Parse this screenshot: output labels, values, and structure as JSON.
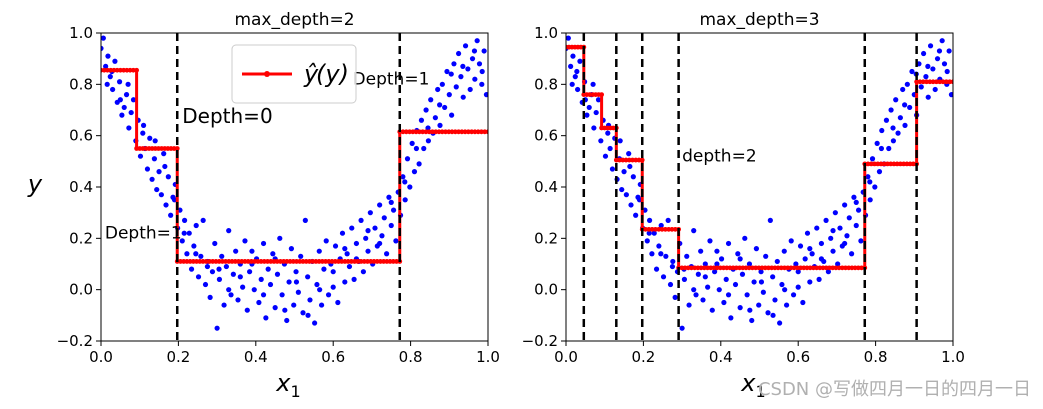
{
  "watermark": "CSDN @写做四月一日的四月一日",
  "chart_data": [
    {
      "type": "scatter+step",
      "title": "max_depth=2",
      "xlabel": "x1",
      "ylabel": "y",
      "xlim": [
        0,
        1
      ],
      "ylim": [
        -0.2,
        1.0
      ],
      "xticks": [
        "0.0",
        "0.2",
        "0.4",
        "0.6",
        "0.8",
        "1.0"
      ],
      "yticks": [
        "−0.2",
        "0.0",
        "0.2",
        "0.4",
        "0.6",
        "0.8",
        "1.0"
      ],
      "legend": {
        "label": "ŷ",
        "suffix": "(y)",
        "position": "upper-center"
      },
      "prediction_steps": [
        {
          "x0": 0.0,
          "x1": 0.092,
          "y": 0.855
        },
        {
          "x0": 0.092,
          "x1": 0.197,
          "y": 0.55
        },
        {
          "x0": 0.197,
          "x1": 0.772,
          "y": 0.11
        },
        {
          "x0": 0.772,
          "x1": 1.0,
          "y": 0.615
        }
      ],
      "split_lines": [
        {
          "x": 0.197
        },
        {
          "x": 0.772
        }
      ],
      "annotations": [
        {
          "text": "Depth=0",
          "x": 0.21,
          "y": 0.65,
          "size": "large"
        },
        {
          "text": "Depth=1",
          "x": 0.01,
          "y": 0.2,
          "size": "medium"
        },
        {
          "text": "Depth=1",
          "x": 0.65,
          "y": 0.8,
          "size": "medium"
        }
      ]
    },
    {
      "type": "scatter+step",
      "title": "max_depth=3",
      "xlabel": "x1",
      "ylabel": "",
      "xlim": [
        0,
        1
      ],
      "ylim": [
        -0.2,
        1.0
      ],
      "xticks": [
        "0.0",
        "0.2",
        "0.4",
        "0.6",
        "0.8",
        "1.0"
      ],
      "yticks": [
        "−0.2",
        "0.0",
        "0.2",
        "0.4",
        "0.6",
        "0.8",
        "1.0"
      ],
      "prediction_steps": [
        {
          "x0": 0.0,
          "x1": 0.046,
          "y": 0.945
        },
        {
          "x0": 0.046,
          "x1": 0.092,
          "y": 0.76
        },
        {
          "x0": 0.092,
          "x1": 0.13,
          "y": 0.63
        },
        {
          "x0": 0.13,
          "x1": 0.197,
          "y": 0.505
        },
        {
          "x0": 0.197,
          "x1": 0.291,
          "y": 0.235
        },
        {
          "x0": 0.291,
          "x1": 0.772,
          "y": 0.085
        },
        {
          "x0": 0.772,
          "x1": 0.906,
          "y": 0.49
        },
        {
          "x0": 0.906,
          "x1": 1.0,
          "y": 0.81
        }
      ],
      "split_lines": [
        {
          "x": 0.046
        },
        {
          "x": 0.13
        },
        {
          "x": 0.197
        },
        {
          "x": 0.291
        },
        {
          "x": 0.772
        },
        {
          "x": 0.906
        }
      ],
      "annotations": [
        {
          "text": "depth=2",
          "x": 0.3,
          "y": 0.5,
          "size": "medium"
        }
      ]
    }
  ],
  "scatter_points": [
    [
      0.0,
      0.94
    ],
    [
      0.006,
      0.98
    ],
    [
      0.012,
      0.87
    ],
    [
      0.018,
      0.91
    ],
    [
      0.024,
      0.83
    ],
    [
      0.03,
      0.78
    ],
    [
      0.036,
      0.89
    ],
    [
      0.042,
      0.73
    ],
    [
      0.048,
      0.81
    ],
    [
      0.054,
      0.68
    ],
    [
      0.06,
      0.71
    ],
    [
      0.066,
      0.76
    ],
    [
      0.072,
      0.63
    ],
    [
      0.078,
      0.69
    ],
    [
      0.084,
      0.74
    ],
    [
      0.09,
      0.58
    ],
    [
      0.096,
      0.66
    ],
    [
      0.102,
      0.52
    ],
    [
      0.108,
      0.61
    ],
    [
      0.114,
      0.55
    ],
    [
      0.12,
      0.47
    ],
    [
      0.126,
      0.59
    ],
    [
      0.132,
      0.43
    ],
    [
      0.138,
      0.51
    ],
    [
      0.144,
      0.39
    ],
    [
      0.15,
      0.46
    ],
    [
      0.156,
      0.37
    ],
    [
      0.162,
      0.53
    ],
    [
      0.168,
      0.33
    ],
    [
      0.174,
      0.44
    ],
    [
      0.18,
      0.29
    ],
    [
      0.186,
      0.36
    ],
    [
      0.192,
      0.41
    ],
    [
      0.198,
      0.24
    ],
    [
      0.204,
      0.31
    ],
    [
      0.21,
      0.19
    ],
    [
      0.216,
      0.27
    ],
    [
      0.222,
      0.14
    ],
    [
      0.228,
      0.22
    ],
    [
      0.234,
      0.08
    ],
    [
      0.24,
      0.17
    ],
    [
      0.246,
      0.25
    ],
    [
      0.252,
      0.05
    ],
    [
      0.258,
      0.13
    ],
    [
      0.264,
      0.27
    ],
    [
      0.27,
      0.02
    ],
    [
      0.276,
      0.11
    ],
    [
      0.282,
      -0.03
    ],
    [
      0.288,
      0.07
    ],
    [
      0.294,
      0.18
    ],
    [
      0.3,
      -0.15
    ],
    [
      0.306,
      0.04
    ],
    [
      0.312,
      0.13
    ],
    [
      0.318,
      -0.06
    ],
    [
      0.324,
      0.09
    ],
    [
      0.33,
      0.23
    ],
    [
      0.336,
      -0.02
    ],
    [
      0.342,
      0.06
    ],
    [
      0.348,
      0.15
    ],
    [
      0.354,
      -0.04
    ],
    [
      0.36,
      0.1
    ],
    [
      0.366,
      0.01
    ],
    [
      0.372,
      0.19
    ],
    [
      0.378,
      -0.08
    ],
    [
      0.384,
      0.07
    ],
    [
      0.39,
      0.15
    ],
    [
      0.396,
      0.0
    ],
    [
      0.402,
      0.12
    ],
    [
      0.408,
      -0.05
    ],
    [
      0.414,
      0.04
    ],
    [
      0.42,
      0.18
    ],
    [
      0.426,
      -0.11
    ],
    [
      0.432,
      0.08
    ],
    [
      0.438,
      0.02
    ],
    [
      0.444,
      0.14
    ],
    [
      0.45,
      -0.07
    ],
    [
      0.456,
      0.06
    ],
    [
      0.462,
      0.2
    ],
    [
      0.468,
      -0.02
    ],
    [
      0.474,
      0.1
    ],
    [
      0.48,
      -0.12
    ],
    [
      0.486,
      0.03
    ],
    [
      0.492,
      0.16
    ],
    [
      0.498,
      -0.06
    ],
    [
      0.504,
      0.07
    ],
    [
      0.51,
      -0.01
    ],
    [
      0.516,
      0.13
    ],
    [
      0.522,
      -0.09
    ],
    [
      0.528,
      0.27
    ],
    [
      0.534,
      0.05
    ],
    [
      0.54,
      -0.04
    ],
    [
      0.546,
      0.11
    ],
    [
      0.552,
      -0.13
    ],
    [
      0.558,
      0.02
    ],
    [
      0.564,
      0.15
    ],
    [
      0.57,
      -0.06
    ],
    [
      0.576,
      0.08
    ],
    [
      0.582,
      0.19
    ],
    [
      0.588,
      -0.02
    ],
    [
      0.594,
      0.1
    ],
    [
      0.6,
      0.01
    ],
    [
      0.606,
      0.17
    ],
    [
      0.612,
      -0.05
    ],
    [
      0.618,
      0.12
    ],
    [
      0.624,
      0.22
    ],
    [
      0.63,
      0.03
    ],
    [
      0.636,
      0.14
    ],
    [
      0.642,
      0.09
    ],
    [
      0.648,
      0.24
    ],
    [
      0.654,
      0.04
    ],
    [
      0.66,
      0.18
    ],
    [
      0.666,
      0.11
    ],
    [
      0.672,
      0.27
    ],
    [
      0.678,
      0.07
    ],
    [
      0.684,
      0.2
    ],
    [
      0.69,
      0.15
    ],
    [
      0.696,
      0.3
    ],
    [
      0.702,
      0.1
    ],
    [
      0.708,
      0.24
    ],
    [
      0.714,
      0.17
    ],
    [
      0.72,
      0.33
    ],
    [
      0.726,
      0.21
    ],
    [
      0.732,
      0.28
    ],
    [
      0.738,
      0.14
    ],
    [
      0.744,
      0.36
    ],
    [
      0.75,
      0.25
    ],
    [
      0.756,
      0.31
    ],
    [
      0.762,
      0.19
    ],
    [
      0.768,
      0.38
    ],
    [
      0.774,
      0.29
    ],
    [
      0.78,
      0.44
    ],
    [
      0.786,
      0.35
    ],
    [
      0.792,
      0.51
    ],
    [
      0.798,
      0.4
    ],
    [
      0.804,
      0.57
    ],
    [
      0.81,
      0.46
    ],
    [
      0.816,
      0.62
    ],
    [
      0.822,
      0.49
    ],
    [
      0.828,
      0.66
    ],
    [
      0.834,
      0.55
    ],
    [
      0.84,
      0.7
    ],
    [
      0.846,
      0.58
    ],
    [
      0.852,
      0.74
    ],
    [
      0.858,
      0.61
    ],
    [
      0.864,
      0.67
    ],
    [
      0.87,
      0.78
    ],
    [
      0.876,
      0.64
    ],
    [
      0.882,
      0.8
    ],
    [
      0.888,
      0.71
    ],
    [
      0.894,
      0.85
    ],
    [
      0.9,
      0.76
    ],
    [
      0.906,
      0.68
    ],
    [
      0.912,
      0.88
    ],
    [
      0.918,
      0.79
    ],
    [
      0.924,
      0.92
    ],
    [
      0.93,
      0.83
    ],
    [
      0.936,
      0.75
    ],
    [
      0.942,
      0.95
    ],
    [
      0.948,
      0.86
    ],
    [
      0.954,
      0.78
    ],
    [
      0.96,
      0.9
    ],
    [
      0.966,
      0.82
    ],
    [
      0.972,
      0.97
    ],
    [
      0.978,
      0.88
    ],
    [
      0.984,
      0.8
    ],
    [
      0.99,
      0.93
    ],
    [
      0.996,
      0.76
    ],
    [
      0.016,
      0.8
    ],
    [
      0.028,
      0.85
    ],
    [
      0.05,
      0.74
    ],
    [
      0.07,
      0.8
    ],
    [
      0.11,
      0.64
    ],
    [
      0.14,
      0.58
    ],
    [
      0.165,
      0.48
    ],
    [
      0.19,
      0.35
    ],
    [
      0.215,
      0.22
    ],
    [
      0.245,
      0.14
    ],
    [
      0.275,
      0.09
    ],
    [
      0.305,
      0.08
    ],
    [
      0.33,
      0.0
    ],
    [
      0.36,
      0.05
    ],
    [
      0.39,
      0.1
    ],
    [
      0.42,
      -0.02
    ],
    [
      0.45,
      0.12
    ],
    [
      0.475,
      -0.08
    ],
    [
      0.505,
      0.03
    ],
    [
      0.535,
      -0.1
    ],
    [
      0.565,
      0.0
    ],
    [
      0.6,
      0.07
    ],
    [
      0.63,
      0.16
    ],
    [
      0.66,
      0.12
    ],
    [
      0.69,
      0.23
    ],
    [
      0.72,
      0.18
    ],
    [
      0.75,
      0.34
    ],
    [
      0.785,
      0.42
    ],
    [
      0.815,
      0.55
    ],
    [
      0.845,
      0.63
    ],
    [
      0.875,
      0.72
    ],
    [
      0.905,
      0.84
    ],
    [
      0.935,
      0.87
    ],
    [
      0.965,
      0.93
    ],
    [
      0.985,
      0.85
    ]
  ]
}
